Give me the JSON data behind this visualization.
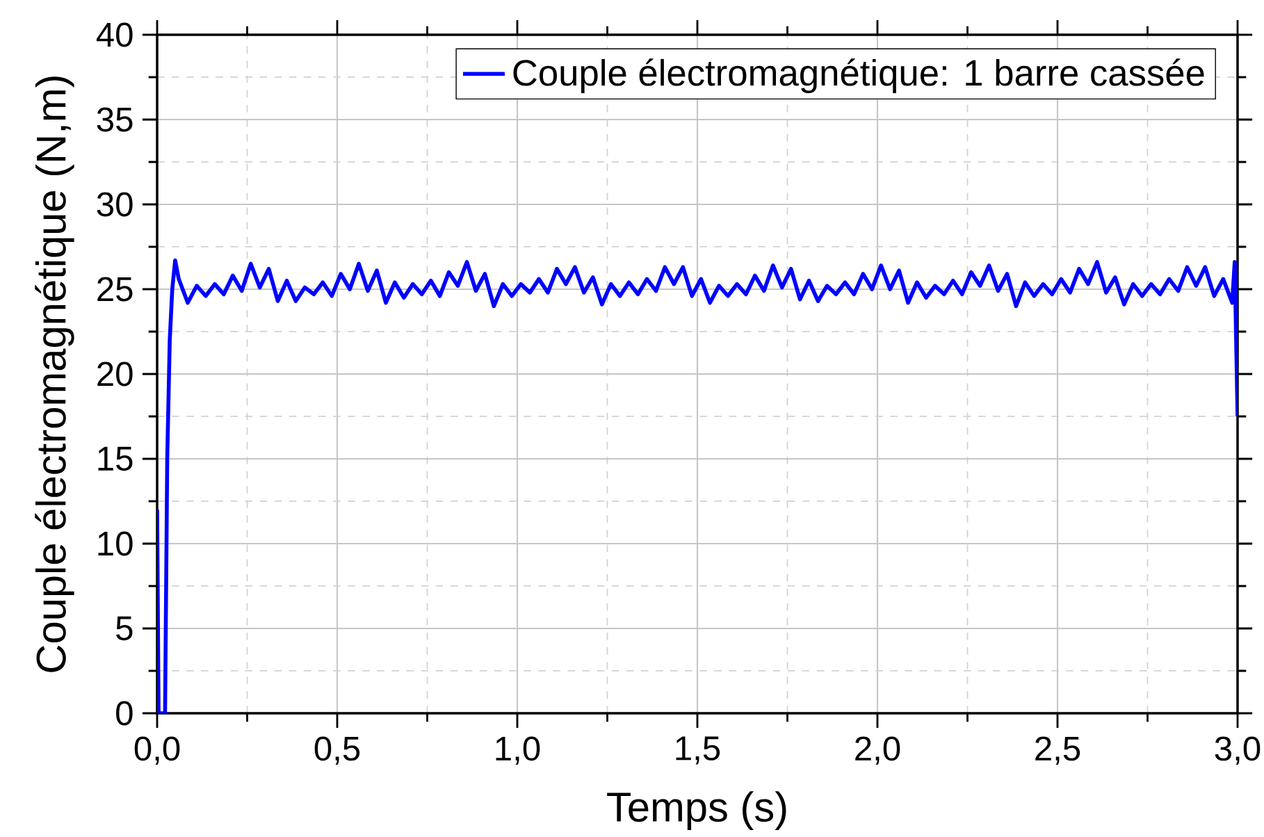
{
  "chart_data": {
    "type": "line",
    "xlabel": "Temps (s)",
    "ylabel": "Couple électromagnétique (N,m)",
    "x": [
      0,
      0.004,
      0.022,
      0.028,
      0.035,
      0.042,
      0.05,
      0.06,
      0.085,
      0.11,
      0.135,
      0.16,
      0.185,
      0.21,
      0.235,
      0.26,
      0.285,
      0.31,
      0.335,
      0.36,
      0.385,
      0.41,
      0.435,
      0.46,
      0.485,
      0.51,
      0.535,
      0.56,
      0.585,
      0.61,
      0.635,
      0.66,
      0.685,
      0.71,
      0.735,
      0.76,
      0.785,
      0.81,
      0.835,
      0.86,
      0.885,
      0.91,
      0.935,
      0.96,
      0.985,
      1.01,
      1.035,
      1.06,
      1.085,
      1.11,
      1.135,
      1.16,
      1.185,
      1.21,
      1.235,
      1.26,
      1.285,
      1.31,
      1.335,
      1.36,
      1.385,
      1.41,
      1.435,
      1.46,
      1.485,
      1.51,
      1.535,
      1.56,
      1.585,
      1.61,
      1.635,
      1.66,
      1.685,
      1.71,
      1.735,
      1.76,
      1.785,
      1.81,
      1.835,
      1.86,
      1.885,
      1.91,
      1.935,
      1.96,
      1.985,
      2.01,
      2.035,
      2.06,
      2.085,
      2.11,
      2.135,
      2.16,
      2.185,
      2.21,
      2.235,
      2.26,
      2.285,
      2.31,
      2.335,
      2.36,
      2.385,
      2.41,
      2.435,
      2.46,
      2.485,
      2.51,
      2.535,
      2.56,
      2.585,
      2.61,
      2.635,
      2.66,
      2.685,
      2.71,
      2.735,
      2.76,
      2.785,
      2.81,
      2.835,
      2.86,
      2.885,
      2.91,
      2.935,
      2.96,
      2.985,
      2.992,
      3.0
    ],
    "series": [
      {
        "name": "Couple électromagnétique: 1 barre cassée",
        "color": "#0000ff",
        "values": [
          12,
          0,
          0,
          15,
          22,
          25,
          26.7,
          25.6,
          24.2,
          25.2,
          24.6,
          25.3,
          24.7,
          25.8,
          24.9,
          26.5,
          25.1,
          26.2,
          24.3,
          25.5,
          24.3,
          25.1,
          24.7,
          25.4,
          24.6,
          25.9,
          25.0,
          26.5,
          24.9,
          26.1,
          24.2,
          25.4,
          24.5,
          25.3,
          24.7,
          25.5,
          24.6,
          26.0,
          25.2,
          26.6,
          24.9,
          25.9,
          24.0,
          25.3,
          24.6,
          25.3,
          24.8,
          25.6,
          24.8,
          26.2,
          25.3,
          26.3,
          24.8,
          25.7,
          24.1,
          25.3,
          24.6,
          25.4,
          24.7,
          25.6,
          24.9,
          26.3,
          25.3,
          26.3,
          24.6,
          25.6,
          24.2,
          25.2,
          24.6,
          25.3,
          24.7,
          25.8,
          24.9,
          26.4,
          25.1,
          26.2,
          24.4,
          25.5,
          24.3,
          25.2,
          24.7,
          25.4,
          24.7,
          25.9,
          25.0,
          26.4,
          25.0,
          26.1,
          24.2,
          25.4,
          24.5,
          25.2,
          24.7,
          25.5,
          24.7,
          26.0,
          25.2,
          26.4,
          24.9,
          25.9,
          24.0,
          25.4,
          24.6,
          25.3,
          24.7,
          25.6,
          24.8,
          26.2,
          25.3,
          26.6,
          24.8,
          25.7,
          24.1,
          25.3,
          24.6,
          25.3,
          24.7,
          25.6,
          24.9,
          26.3,
          25.2,
          26.3,
          24.6,
          25.6,
          24.2,
          26.6,
          17.5
        ]
      }
    ],
    "xlim": [
      0,
      3.0
    ],
    "ylim": [
      0,
      40
    ],
    "xticks": [
      {
        "value": 0,
        "label": "0,0"
      },
      {
        "value": 0.5,
        "label": "0,5"
      },
      {
        "value": 1.0,
        "label": "1,0"
      },
      {
        "value": 1.5,
        "label": "1,5"
      },
      {
        "value": 2.0,
        "label": "2,0"
      },
      {
        "value": 2.5,
        "label": "2,5"
      },
      {
        "value": 3.0,
        "label": "3,0"
      }
    ],
    "yticks": [
      0,
      5,
      10,
      15,
      20,
      25,
      30,
      35,
      40
    ],
    "grid": true,
    "legend": "top right",
    "line_style": "solid",
    "marker": "none"
  }
}
